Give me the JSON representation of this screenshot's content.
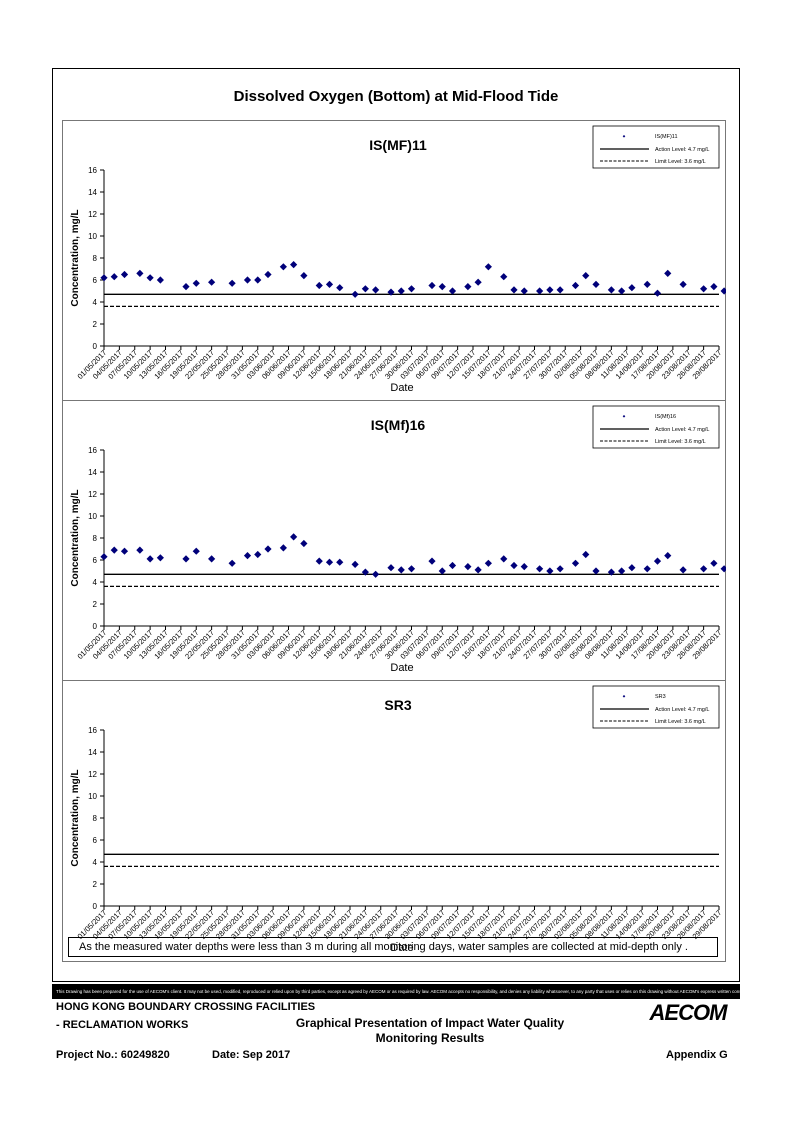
{
  "page": {
    "title": "Dissolved Oxygen (Bottom) at Mid-Flood Tide",
    "note": "As the measured water depths were less than 3 m during all monitoring days, water samples are collected  at mid-depth only .",
    "disclaimer": "This Drawing has been prepared for the use of AECOM's client. It may not be used, modified, reproduced or relied upon by third parties, except as agreed by AECOM or as required by law. AECOM accepts no responsibility, and denies any liability whatsoever, to any party that uses or relies on this drawing without AECOM's express written consent."
  },
  "footer": {
    "project_line1": "HONG KONG BOUNDARY CROSSING FACILITIES",
    "project_line2": "- RECLAMATION WORKS",
    "doc_title_line1": "Graphical Presentation of Impact Water Quality",
    "doc_title_line2": "Monitoring Results",
    "project_no": "Project No.: 60249820",
    "date": "Date: Sep 2017",
    "appendix": "Appendix G",
    "logo_text": "AECOM"
  },
  "chart_data": [
    {
      "type": "scatter",
      "title": "IS(MF)11",
      "xlabel": "Date",
      "ylabel": "Concentration, mg/L",
      "ylim": [
        0,
        16
      ],
      "yticks": [
        0,
        2,
        4,
        6,
        8,
        10,
        12,
        14,
        16
      ],
      "xlim": [
        "01/05/2017",
        "29/08/2017"
      ],
      "xtick_labels": [
        "01/05/2017",
        "04/05/2017",
        "07/05/2017",
        "10/05/2017",
        "13/05/2017",
        "16/05/2017",
        "19/05/2017",
        "22/05/2017",
        "25/05/2017",
        "28/05/2017",
        "31/05/2017",
        "03/06/2017",
        "06/06/2017",
        "09/06/2017",
        "12/06/2017",
        "15/06/2017",
        "18/06/2017",
        "21/06/2017",
        "24/06/2017",
        "27/06/2017",
        "30/06/2017",
        "03/07/2017",
        "06/07/2017",
        "09/07/2017",
        "12/07/2017",
        "15/07/2017",
        "18/07/2017",
        "21/07/2017",
        "24/07/2017",
        "27/07/2017",
        "30/07/2017",
        "02/08/2017",
        "05/08/2017",
        "08/08/2017",
        "11/08/2017",
        "14/08/2017",
        "17/08/2017",
        "20/08/2017",
        "23/08/2017",
        "26/08/2017",
        "29/08/2017"
      ],
      "grid": false,
      "legend_position": "top-right",
      "legend": {
        "series": "IS(MF)11",
        "action": "Action Level: 4.7 mg/L",
        "limit": "Limit Level: 3.6 mg/L"
      },
      "action_level": 4.7,
      "limit_level": 3.6,
      "series": [
        {
          "name": "IS(MF)11",
          "marker_color": "#00007a",
          "x": [
            "01/05/2017",
            "03/05/2017",
            "05/05/2017",
            "08/05/2017",
            "10/05/2017",
            "12/05/2017",
            "17/05/2017",
            "19/05/2017",
            "22/05/2017",
            "26/05/2017",
            "29/05/2017",
            "31/05/2017",
            "02/06/2017",
            "05/06/2017",
            "07/06/2017",
            "09/06/2017",
            "12/06/2017",
            "14/06/2017",
            "16/06/2017",
            "19/06/2017",
            "21/06/2017",
            "23/06/2017",
            "26/06/2017",
            "28/06/2017",
            "30/06/2017",
            "04/07/2017",
            "06/07/2017",
            "08/07/2017",
            "11/07/2017",
            "13/07/2017",
            "15/07/2017",
            "18/07/2017",
            "20/07/2017",
            "22/07/2017",
            "25/07/2017",
            "27/07/2017",
            "29/07/2017",
            "01/08/2017",
            "03/08/2017",
            "05/08/2017",
            "08/08/2017",
            "10/08/2017",
            "12/08/2017",
            "15/08/2017",
            "17/08/2017",
            "19/08/2017",
            "22/08/2017",
            "26/08/2017",
            "28/08/2017",
            "30/08/2017"
          ],
          "values": [
            6.2,
            6.3,
            6.5,
            6.6,
            6.2,
            6.0,
            5.4,
            5.7,
            5.8,
            5.7,
            6.0,
            6.0,
            6.5,
            7.2,
            7.4,
            6.4,
            5.5,
            5.6,
            5.3,
            4.7,
            5.2,
            5.1,
            4.9,
            5.0,
            5.2,
            5.5,
            5.4,
            5.0,
            5.4,
            5.8,
            7.2,
            6.3,
            5.1,
            5.0,
            5.0,
            5.1,
            5.1,
            5.5,
            6.4,
            5.6,
            5.1,
            5.0,
            5.3,
            5.6,
            4.8,
            6.6,
            5.6,
            5.2,
            5.4,
            5.0
          ]
        }
      ]
    },
    {
      "type": "scatter",
      "title": "IS(Mf)16",
      "xlabel": "Date",
      "ylabel": "Concentration, mg/L",
      "ylim": [
        0,
        16
      ],
      "yticks": [
        0,
        2,
        4,
        6,
        8,
        10,
        12,
        14,
        16
      ],
      "xlim": [
        "01/05/2017",
        "29/08/2017"
      ],
      "xtick_labels": [
        "01/05/2017",
        "04/05/2017",
        "07/05/2017",
        "10/05/2017",
        "13/05/2017",
        "16/05/2017",
        "19/05/2017",
        "22/05/2017",
        "25/05/2017",
        "28/05/2017",
        "31/05/2017",
        "03/06/2017",
        "06/06/2017",
        "09/06/2017",
        "12/06/2017",
        "15/06/2017",
        "18/06/2017",
        "21/06/2017",
        "24/06/2017",
        "27/06/2017",
        "30/06/2017",
        "03/07/2017",
        "06/07/2017",
        "09/07/2017",
        "12/07/2017",
        "15/07/2017",
        "18/07/2017",
        "21/07/2017",
        "24/07/2017",
        "27/07/2017",
        "30/07/2017",
        "02/08/2017",
        "05/08/2017",
        "08/08/2017",
        "11/08/2017",
        "14/08/2017",
        "17/08/2017",
        "20/08/2017",
        "23/08/2017",
        "26/08/2017",
        "29/08/2017"
      ],
      "grid": false,
      "legend_position": "top-right",
      "legend": {
        "series": "IS(Mf)16",
        "action": "Action Level: 4.7 mg/L",
        "limit": "Limit Level: 3.6 mg/L"
      },
      "action_level": 4.7,
      "limit_level": 3.6,
      "series": [
        {
          "name": "IS(Mf)16",
          "marker_color": "#00007a",
          "x": [
            "01/05/2017",
            "03/05/2017",
            "05/05/2017",
            "08/05/2017",
            "10/05/2017",
            "12/05/2017",
            "17/05/2017",
            "19/05/2017",
            "22/05/2017",
            "26/05/2017",
            "29/05/2017",
            "31/05/2017",
            "02/06/2017",
            "05/06/2017",
            "07/06/2017",
            "09/06/2017",
            "12/06/2017",
            "14/06/2017",
            "16/06/2017",
            "19/06/2017",
            "21/06/2017",
            "23/06/2017",
            "26/06/2017",
            "28/06/2017",
            "30/06/2017",
            "04/07/2017",
            "06/07/2017",
            "08/07/2017",
            "11/07/2017",
            "13/07/2017",
            "15/07/2017",
            "18/07/2017",
            "20/07/2017",
            "22/07/2017",
            "25/07/2017",
            "27/07/2017",
            "29/07/2017",
            "01/08/2017",
            "03/08/2017",
            "05/08/2017",
            "08/08/2017",
            "10/08/2017",
            "12/08/2017",
            "15/08/2017",
            "17/08/2017",
            "19/08/2017",
            "22/08/2017",
            "26/08/2017",
            "28/08/2017",
            "30/08/2017"
          ],
          "values": [
            6.3,
            6.9,
            6.8,
            6.9,
            6.1,
            6.2,
            6.1,
            6.8,
            6.1,
            5.7,
            6.4,
            6.5,
            7.0,
            7.1,
            8.1,
            7.5,
            5.9,
            5.8,
            5.8,
            5.6,
            4.9,
            4.7,
            5.3,
            5.1,
            5.2,
            5.9,
            5.0,
            5.5,
            5.4,
            5.1,
            5.7,
            6.1,
            5.5,
            5.4,
            5.2,
            5.0,
            5.2,
            5.7,
            6.5,
            5.0,
            4.9,
            5.0,
            5.3,
            5.2,
            5.9,
            6.4,
            5.1,
            5.2,
            5.7,
            5.2
          ]
        }
      ]
    },
    {
      "type": "scatter",
      "title": "SR3",
      "xlabel": "Date",
      "ylabel": "Concentration, mg/L",
      "ylim": [
        0,
        16
      ],
      "yticks": [
        0,
        2,
        4,
        6,
        8,
        10,
        12,
        14,
        16
      ],
      "xlim": [
        "01/05/2017",
        "29/08/2017"
      ],
      "xtick_labels": [
        "01/05/2017",
        "04/05/2017",
        "07/05/2017",
        "10/05/2017",
        "13/05/2017",
        "16/05/2017",
        "19/05/2017",
        "22/05/2017",
        "25/05/2017",
        "28/05/2017",
        "31/05/2017",
        "03/06/2017",
        "06/06/2017",
        "09/06/2017",
        "12/06/2017",
        "15/06/2017",
        "18/06/2017",
        "21/06/2017",
        "24/06/2017",
        "27/06/2017",
        "30/06/2017",
        "03/07/2017",
        "06/07/2017",
        "09/07/2017",
        "12/07/2017",
        "15/07/2017",
        "18/07/2017",
        "21/07/2017",
        "24/07/2017",
        "27/07/2017",
        "30/07/2017",
        "02/08/2017",
        "05/08/2017",
        "08/08/2017",
        "11/08/2017",
        "14/08/2017",
        "17/08/2017",
        "20/08/2017",
        "23/08/2017",
        "26/08/2017",
        "29/08/2017"
      ],
      "grid": false,
      "legend_position": "top-right",
      "legend": {
        "series": "SR3",
        "action": "Action Level: 4.7 mg/L",
        "limit": "Limit Level: 3.6 mg/L"
      },
      "action_level": 4.7,
      "limit_level": 3.6,
      "series": [
        {
          "name": "SR3",
          "marker_color": "#00007a",
          "x": [],
          "values": []
        }
      ]
    }
  ]
}
